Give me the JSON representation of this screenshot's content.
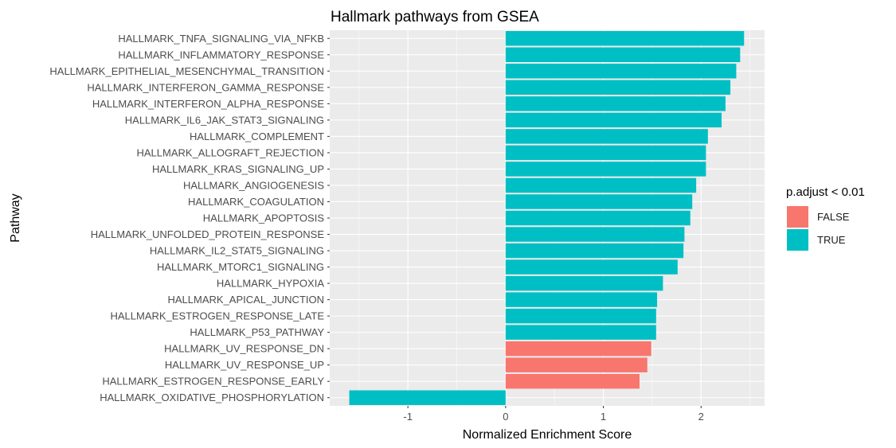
{
  "chart_data": {
    "type": "bar",
    "orientation": "horizontal",
    "title": "Hallmark pathways from GSEA",
    "xlabel": "Normalized Enrichment Score",
    "ylabel": "Pathway",
    "xlim": [
      -1.8,
      2.65
    ],
    "xticks": [
      -1,
      0,
      1,
      2
    ],
    "grid": true,
    "legend": {
      "title": "p.adjust < 0.01",
      "placement": "right",
      "entries": [
        {
          "label": "FALSE",
          "color": "#F8766D"
        },
        {
          "label": "TRUE",
          "color": "#00BFC4"
        }
      ]
    },
    "colors": {
      "FALSE": "#F8766D",
      "TRUE": "#00BFC4"
    },
    "bars": [
      {
        "pathway": "HALLMARK_TNFA_SIGNALING_VIA_NFKB",
        "nes": 2.44,
        "significant": "TRUE"
      },
      {
        "pathway": "HALLMARK_INFLAMMATORY_RESPONSE",
        "nes": 2.4,
        "significant": "TRUE"
      },
      {
        "pathway": "HALLMARK_EPITHELIAL_MESENCHYMAL_TRANSITION",
        "nes": 2.36,
        "significant": "TRUE"
      },
      {
        "pathway": "HALLMARK_INTERFERON_GAMMA_RESPONSE",
        "nes": 2.3,
        "significant": "TRUE"
      },
      {
        "pathway": "HALLMARK_INTERFERON_ALPHA_RESPONSE",
        "nes": 2.25,
        "significant": "TRUE"
      },
      {
        "pathway": "HALLMARK_IL6_JAK_STAT3_SIGNALING",
        "nes": 2.21,
        "significant": "TRUE"
      },
      {
        "pathway": "HALLMARK_COMPLEMENT",
        "nes": 2.07,
        "significant": "TRUE"
      },
      {
        "pathway": "HALLMARK_ALLOGRAFT_REJECTION",
        "nes": 2.05,
        "significant": "TRUE"
      },
      {
        "pathway": "HALLMARK_KRAS_SIGNALING_UP",
        "nes": 2.05,
        "significant": "TRUE"
      },
      {
        "pathway": "HALLMARK_ANGIOGENESIS",
        "nes": 1.95,
        "significant": "TRUE"
      },
      {
        "pathway": "HALLMARK_COAGULATION",
        "nes": 1.91,
        "significant": "TRUE"
      },
      {
        "pathway": "HALLMARK_APOPTOSIS",
        "nes": 1.89,
        "significant": "TRUE"
      },
      {
        "pathway": "HALLMARK_UNFOLDED_PROTEIN_RESPONSE",
        "nes": 1.83,
        "significant": "TRUE"
      },
      {
        "pathway": "HALLMARK_IL2_STAT5_SIGNALING",
        "nes": 1.82,
        "significant": "TRUE"
      },
      {
        "pathway": "HALLMARK_MTORC1_SIGNALING",
        "nes": 1.76,
        "significant": "TRUE"
      },
      {
        "pathway": "HALLMARK_HYPOXIA",
        "nes": 1.61,
        "significant": "TRUE"
      },
      {
        "pathway": "HALLMARK_APICAL_JUNCTION",
        "nes": 1.55,
        "significant": "TRUE"
      },
      {
        "pathway": "HALLMARK_ESTROGEN_RESPONSE_LATE",
        "nes": 1.54,
        "significant": "TRUE"
      },
      {
        "pathway": "HALLMARK_P53_PATHWAY",
        "nes": 1.54,
        "significant": "TRUE"
      },
      {
        "pathway": "HALLMARK_UV_RESPONSE_DN",
        "nes": 1.49,
        "significant": "FALSE"
      },
      {
        "pathway": "HALLMARK_UV_RESPONSE_UP",
        "nes": 1.45,
        "significant": "FALSE"
      },
      {
        "pathway": "HALLMARK_ESTROGEN_RESPONSE_EARLY",
        "nes": 1.37,
        "significant": "FALSE"
      },
      {
        "pathway": "HALLMARK_OXIDATIVE_PHOSPHORYLATION",
        "nes": -1.6,
        "significant": "TRUE"
      }
    ]
  }
}
